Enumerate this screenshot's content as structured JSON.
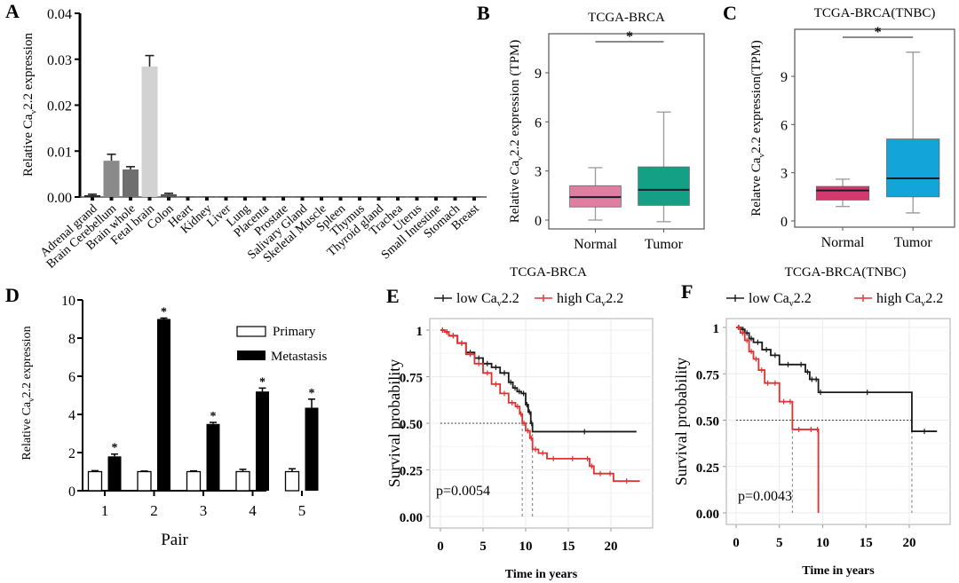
{
  "chart_data": [
    {
      "panel": "A",
      "type": "bar",
      "title": "",
      "xlabel": "",
      "ylabel": "Relative Cav2.2 expression",
      "ylim": [
        0,
        0.04
      ],
      "yticks": [
        "0.00",
        "0.01",
        "0.02",
        "0.03",
        "0.04"
      ],
      "categories": [
        "Adrenal grand",
        "Brain Cerebellum",
        "Brain whole",
        "Fetal brain",
        "Colon",
        "Heart",
        "Kidney",
        "Liver",
        "Lung",
        "Placenta",
        "Prostate",
        "Salivary Gland",
        "Skeletal Muscle",
        "Spleen",
        "Thymus",
        "Thyroid gland",
        "Trachea",
        "Uterus",
        "Small Intestine",
        "Stomach",
        "Breast"
      ],
      "values": [
        0.0004,
        0.0079,
        0.006,
        0.0284,
        0.0006,
        0.0001,
        0.0001,
        0.0001,
        0.0001,
        0.0001,
        0.0001,
        0.0001,
        0.0001,
        0.0001,
        0.0001,
        0.0001,
        0.0001,
        0.0001,
        0.0001,
        0.0001,
        0.0001
      ],
      "errors": [
        0.0002,
        0.0014,
        0.0006,
        0.0024,
        0.0002,
        0,
        0,
        0,
        0,
        0,
        0,
        0,
        0,
        0,
        0,
        0,
        0,
        0,
        0,
        0,
        0
      ],
      "colors": [
        "#2b2b2b",
        "#8a8a8a",
        "#6f6f6f",
        "#d2d2d2",
        "#555555",
        "#333333",
        "#333333",
        "#333333",
        "#333333",
        "#333333",
        "#333333",
        "#333333",
        "#333333",
        "#333333",
        "#333333",
        "#333333",
        "#333333",
        "#333333",
        "#333333",
        "#333333",
        "#333333"
      ]
    },
    {
      "panel": "B",
      "type": "box",
      "title": "TCGA-BRCA",
      "ylabel": "Relative Cav2.2 expression (TPM)",
      "ylim": [
        -0.5,
        11.4
      ],
      "yticks": [
        "0",
        "3",
        "6",
        "9"
      ],
      "categories": [
        "Normal",
        "Tumor"
      ],
      "boxes": [
        {
          "name": "Normal",
          "min": 0.0,
          "q1": 0.8,
          "median": 1.4,
          "q3": 2.1,
          "max": 3.2,
          "color": "#e07ea2"
        },
        {
          "name": "Tumor",
          "min": -0.1,
          "q1": 0.9,
          "median": 1.85,
          "q3": 3.25,
          "max": 6.6,
          "color": "#13a085"
        }
      ],
      "significance": "*"
    },
    {
      "panel": "C",
      "type": "box",
      "title": "TCGA-BRCA(TNBC)",
      "ylabel": "Relatve Cav2.2 expression(TPM)",
      "ylim": [
        -0.4,
        11.7
      ],
      "yticks": [
        "0",
        "3",
        "6",
        "9"
      ],
      "categories": [
        "Normal",
        "Tumor"
      ],
      "boxes": [
        {
          "name": "Normal",
          "min": 0.9,
          "q1": 1.3,
          "median": 1.9,
          "q3": 2.15,
          "max": 2.6,
          "color": "#d13a6c"
        },
        {
          "name": "Tumor",
          "min": 0.5,
          "q1": 1.5,
          "median": 2.65,
          "q3": 5.1,
          "max": 10.5,
          "color": "#13a4d9"
        }
      ],
      "significance": "*"
    },
    {
      "panel": "D",
      "type": "bar",
      "title": "",
      "xlabel": "Pair",
      "ylabel": "Relative Cav2.2 expression",
      "ylim": [
        0,
        10
      ],
      "yticks": [
        "0",
        "2",
        "4",
        "6",
        "8",
        "10"
      ],
      "categories": [
        "1",
        "2",
        "3",
        "4",
        "5"
      ],
      "series": [
        {
          "name": "Primary",
          "values": [
            1.0,
            1.0,
            1.0,
            1.0,
            1.0
          ],
          "errors": [
            0.05,
            0.03,
            0.04,
            0.12,
            0.15
          ],
          "color": "#ffffff"
        },
        {
          "name": "Metastasis",
          "values": [
            1.8,
            9.0,
            3.5,
            5.2,
            4.35
          ],
          "errors": [
            0.12,
            0.05,
            0.08,
            0.18,
            0.45
          ],
          "color": "#000000"
        }
      ],
      "significance": [
        "*",
        "*",
        "*",
        "*",
        "*"
      ],
      "legend": "top-right"
    },
    {
      "panel": "E",
      "type": "line",
      "title": "TCGA-BRCA",
      "xlabel": "Time in years",
      "ylabel": "Survival probability",
      "xlim": [
        0,
        24
      ],
      "ylim": [
        0,
        1
      ],
      "xticks": [
        "0",
        "5",
        "10",
        "15",
        "20"
      ],
      "yticks": [
        "0.00",
        "0.25",
        "0.50",
        "0.75",
        "1"
      ],
      "annotation": "p=0.0054",
      "median_lines": [
        9.6,
        10.8
      ],
      "series": [
        {
          "name": "low Cav2.2",
          "color": "#1a1a1a",
          "x": [
            0,
            0.5,
            1,
            2,
            3,
            4,
            5,
            6,
            7,
            8,
            8.5,
            9,
            9.5,
            10,
            10.3,
            10.6,
            10.8,
            23
          ],
          "y": [
            1,
            0.99,
            0.97,
            0.93,
            0.88,
            0.85,
            0.82,
            0.8,
            0.77,
            0.72,
            0.69,
            0.67,
            0.66,
            0.6,
            0.56,
            0.5,
            0.455,
            0.455
          ]
        },
        {
          "name": "high Cav2.2",
          "color": "#e03030",
          "x": [
            0,
            0.5,
            1,
            2,
            3,
            4,
            5,
            6,
            7,
            8,
            8.8,
            9.3,
            9.6,
            10,
            10.5,
            10.8,
            11.5,
            12.5,
            14,
            17,
            17.5,
            18,
            19.5,
            20.3,
            23.4
          ],
          "y": [
            1,
            0.99,
            0.97,
            0.93,
            0.87,
            0.82,
            0.77,
            0.71,
            0.66,
            0.61,
            0.59,
            0.55,
            0.5,
            0.46,
            0.42,
            0.36,
            0.34,
            0.31,
            0.31,
            0.31,
            0.27,
            0.23,
            0.23,
            0.19,
            0.19
          ]
        }
      ],
      "legend": "top"
    },
    {
      "panel": "F",
      "type": "line",
      "title": "TCGA-BRCA(TNBC)",
      "xlabel": "Time in years",
      "ylabel": "Survival probability",
      "xlim": [
        0,
        24
      ],
      "ylim": [
        0,
        1
      ],
      "xticks": [
        "0",
        "5",
        "10",
        "15",
        "20"
      ],
      "yticks": [
        "0.00",
        "0.25",
        "0.50",
        "0.75",
        "1"
      ],
      "annotation": "p=0.0043",
      "median_lines": [
        6.5,
        20.3
      ],
      "series": [
        {
          "name": "low Cav2.2",
          "color": "#1a1a1a",
          "x": [
            0,
            0.6,
            1,
            1.5,
            2,
            3,
            4,
            5,
            7,
            8,
            8.5,
            9,
            9.5,
            10,
            20.3,
            23.2
          ],
          "y": [
            1,
            0.99,
            0.97,
            0.94,
            0.92,
            0.88,
            0.85,
            0.8,
            0.8,
            0.76,
            0.72,
            0.72,
            0.65,
            0.65,
            0.44,
            0.44
          ]
        },
        {
          "name": "high Cav2.2",
          "color": "#e03030",
          "x": [
            0,
            0.5,
            1,
            1.5,
            2,
            2.6,
            3.3,
            4,
            5,
            6,
            6.5,
            8,
            9.3,
            9.5
          ],
          "y": [
            1,
            0.97,
            0.93,
            0.87,
            0.83,
            0.77,
            0.7,
            0.7,
            0.6,
            0.6,
            0.45,
            0.45,
            0.45,
            0.0
          ]
        }
      ],
      "legend": "top"
    }
  ],
  "panels": {
    "A": {
      "letter": "A"
    },
    "B": {
      "letter": "B"
    },
    "C": {
      "letter": "C"
    },
    "D": {
      "letter": "D"
    },
    "E": {
      "letter": "E"
    },
    "F": {
      "letter": "F"
    }
  },
  "legend_text": {
    "low": "low Ca",
    "high": "high Ca",
    "sub": "v",
    "suffix": "2.2"
  }
}
